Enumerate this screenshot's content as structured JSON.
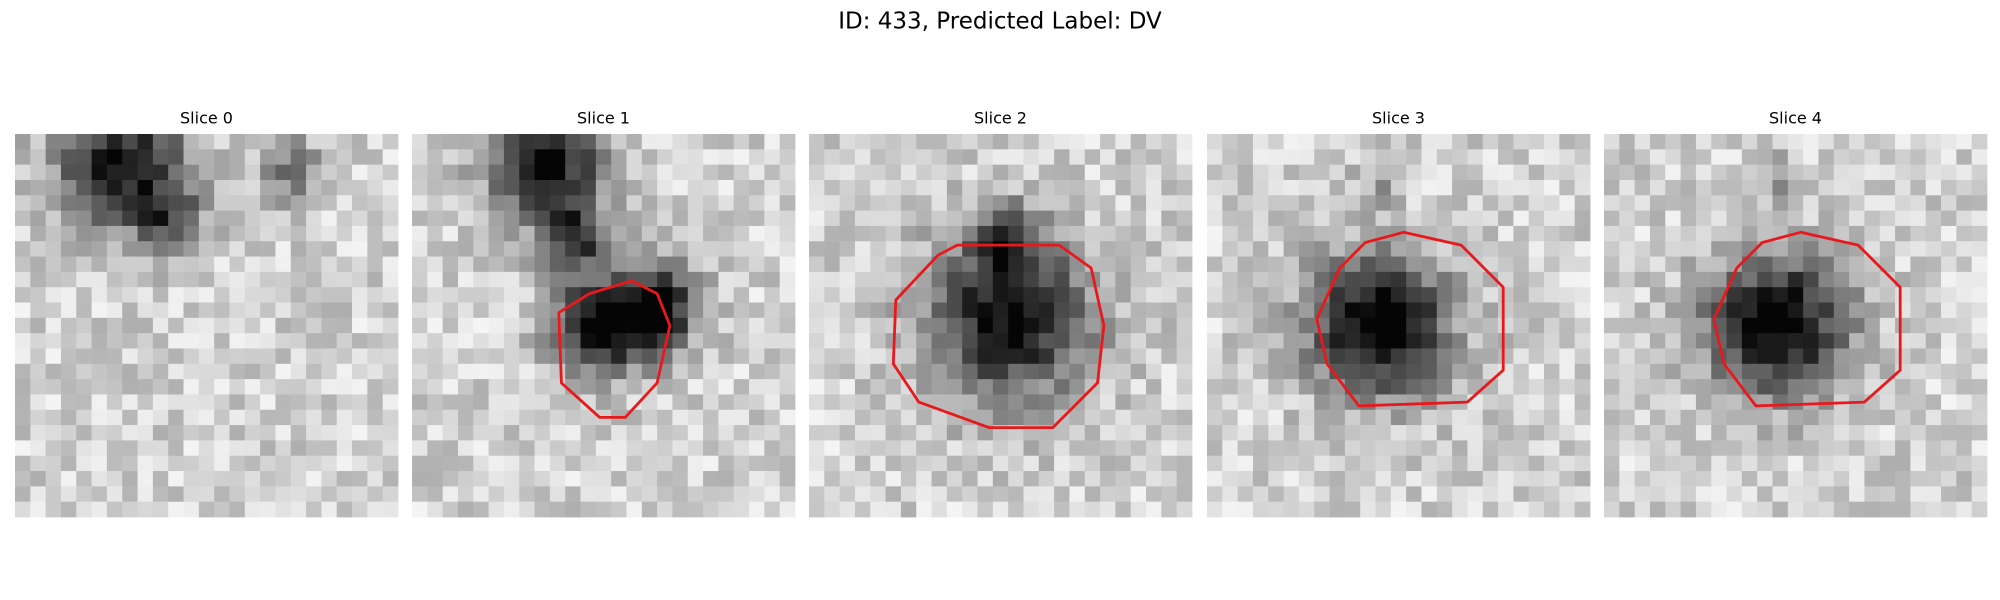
{
  "title": "ID: 433, Predicted Label: DV",
  "panels": [
    {
      "title": "Slice 0"
    },
    {
      "title": "Slice 1"
    },
    {
      "title": "Slice 2"
    },
    {
      "title": "Slice 3"
    },
    {
      "title": "Slice 4"
    }
  ]
}
